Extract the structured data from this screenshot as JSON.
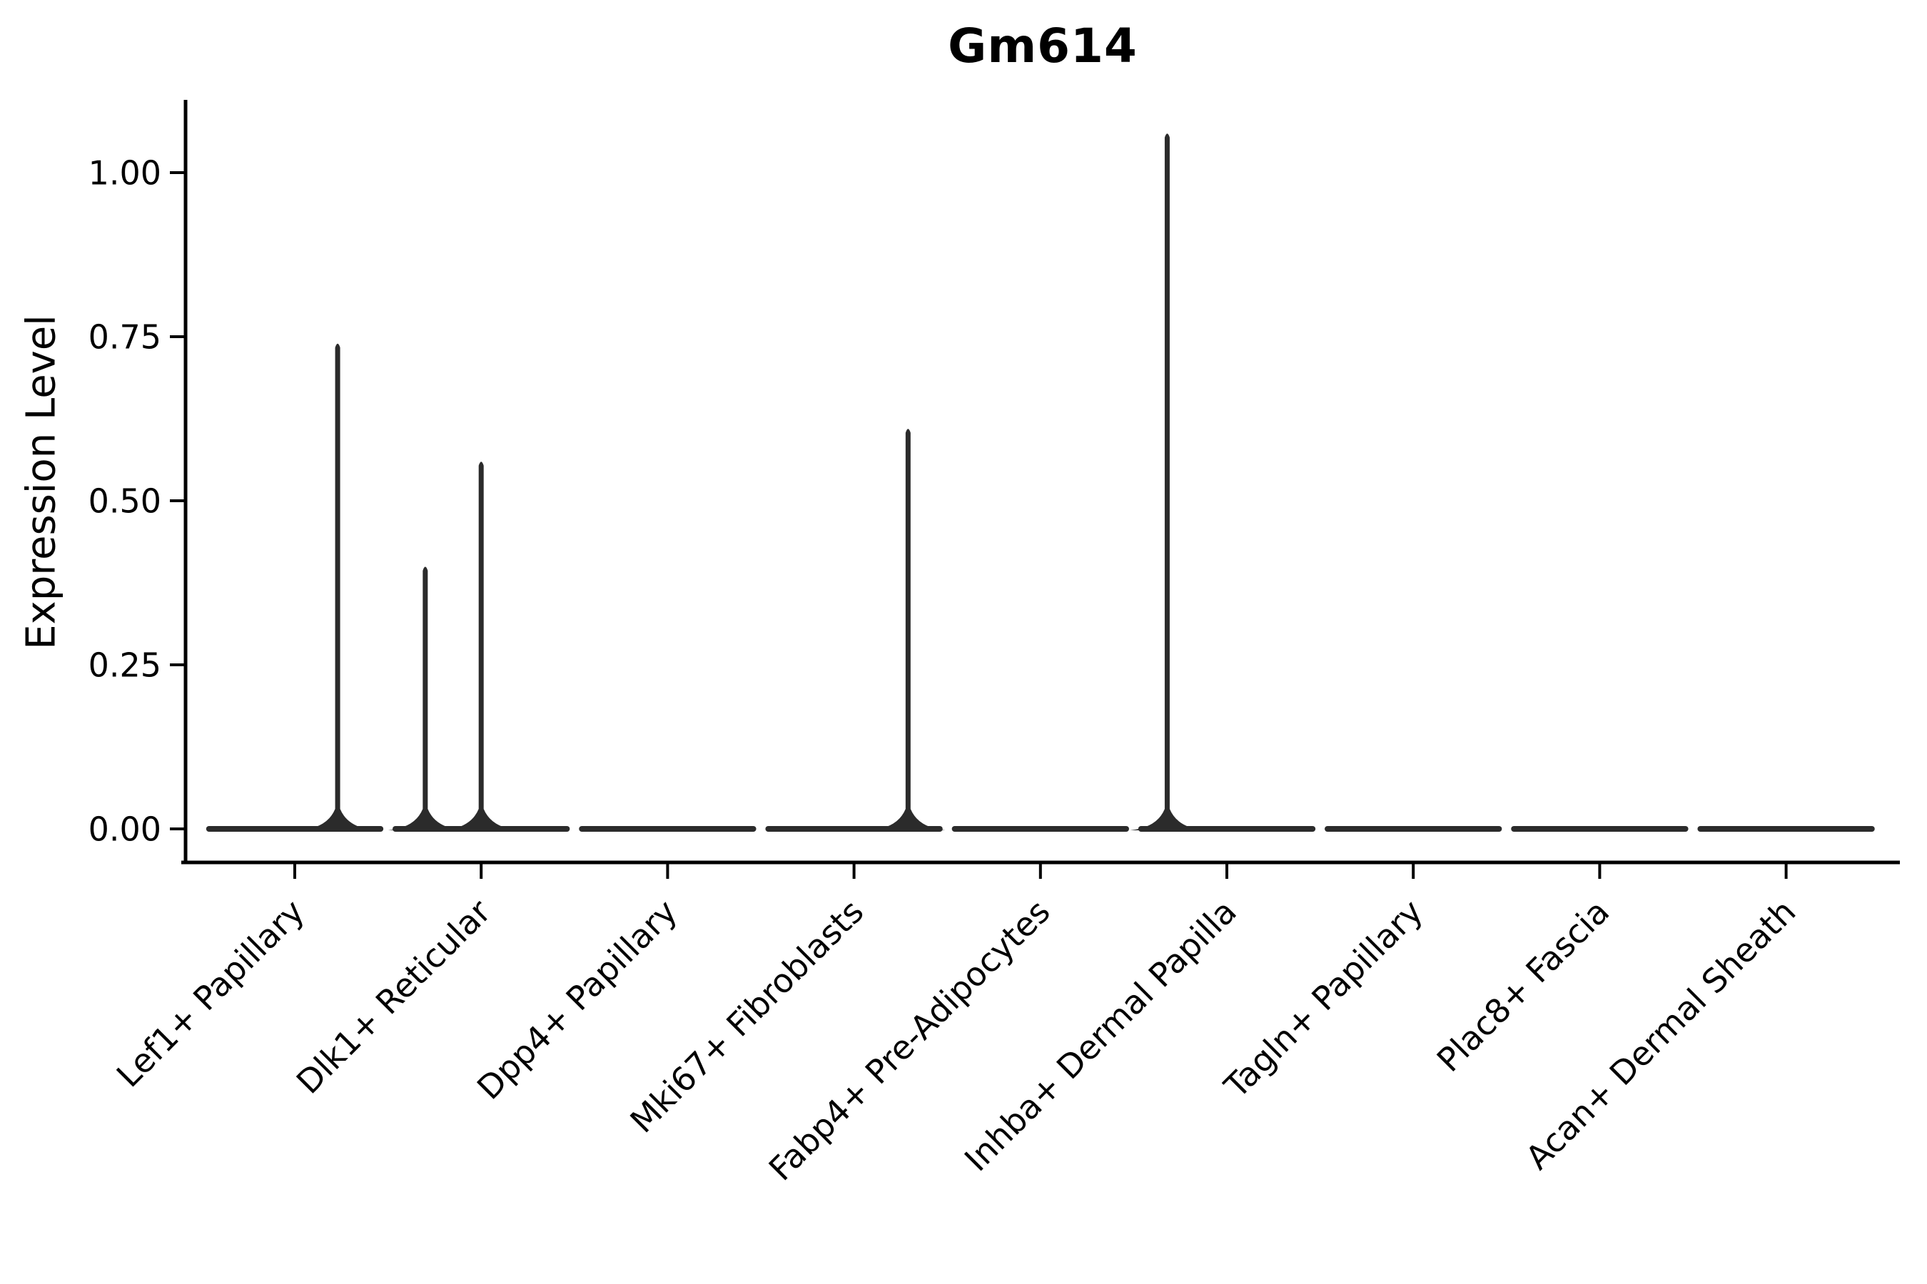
{
  "chart_data": {
    "type": "violin",
    "title": "Gm614",
    "xlabel": "",
    "ylabel": "Expression Level",
    "categories": [
      "Lef1+ Papillary",
      "Dlk1+ Reticular",
      "Dpp4+ Papillary",
      "Mki67+ Fibroblasts",
      "Fabp4+ Pre-Adipocytes",
      "Inhba+ Dermal Papilla",
      "Tagln+ Papillary",
      "Plac8+ Fascia",
      "Acan+ Dermal Sheath"
    ],
    "ytick_labels": [
      "0.00",
      "0.25",
      "0.50",
      "0.75",
      "1.00"
    ],
    "ytick_values": [
      0,
      0.25,
      0.5,
      0.75,
      1.0
    ],
    "ylim": [
      -0.05,
      1.11
    ],
    "grid": false,
    "legend": "none",
    "violin_halfwidth_frac": 0.46,
    "series": [
      {
        "category": "Lef1+ Papillary",
        "spikes": [
          {
            "x_offset": 0.23,
            "value": 0.74
          }
        ]
      },
      {
        "category": "Dlk1+ Reticular",
        "spikes": [
          {
            "x_offset": -0.3,
            "value": 0.4
          },
          {
            "x_offset": 0.0,
            "value": 0.56
          }
        ]
      },
      {
        "category": "Dpp4+ Papillary",
        "spikes": []
      },
      {
        "category": "Mki67+ Fibroblasts",
        "spikes": [
          {
            "x_offset": 0.29,
            "value": 0.61
          }
        ]
      },
      {
        "category": "Fabp4+ Pre-Adipocytes",
        "spikes": []
      },
      {
        "category": "Inhba+ Dermal Papilla",
        "spikes": [
          {
            "x_offset": -0.32,
            "value": 1.06
          }
        ]
      },
      {
        "category": "Tagln+ Papillary",
        "spikes": []
      },
      {
        "category": "Plac8+ Fascia",
        "spikes": []
      },
      {
        "category": "Acan+ Dermal Sheath",
        "spikes": []
      }
    ],
    "colors": {
      "violin": "#2b2b2b",
      "axis": "#000000",
      "text": "#000000",
      "background": "#ffffff"
    }
  }
}
